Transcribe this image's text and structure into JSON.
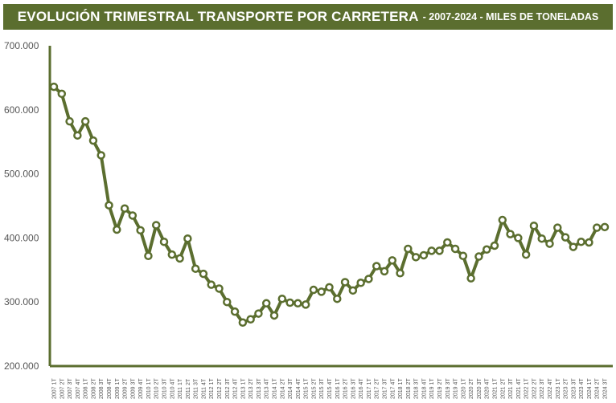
{
  "title": {
    "main": "EVOLUCIÓN TRIMESTRAL TRANSPORTE POR CARRETERA",
    "sub": "- 2007-2024 - MILES DE TONELADAS"
  },
  "colors": {
    "title_bg": "#5b6e2f",
    "line": "#5b6e2f",
    "marker_fill": "#ffffff"
  },
  "chart_data": {
    "type": "line",
    "title": "EVOLUCIÓN TRIMESTRAL TRANSPORTE POR CARRETERA - 2007-2024 - MILES DE TONELADAS",
    "xlabel": "",
    "ylabel": "",
    "ylim": [
      200000,
      700000
    ],
    "yticks": [
      200000,
      300000,
      400000,
      500000,
      600000,
      700000
    ],
    "ytick_labels": [
      "200.000",
      "300.000",
      "400.000",
      "500.000",
      "600.000",
      "700.000"
    ],
    "grid": false,
    "legend": "none",
    "categories": [
      "2007 1T",
      "2007 2T",
      "2007 3T",
      "2007 4T",
      "2008 1T",
      "2008 2T",
      "2008 3T",
      "2008 4T",
      "2009 1T",
      "2009 2T",
      "2009 3T",
      "2009 4T",
      "2010 1T",
      "2010 2T",
      "2010 3T",
      "2010 4T",
      "2011 1T",
      "2011 2T",
      "2011 3T",
      "2011 4T",
      "2012 1T",
      "2012 2T",
      "2012 3T",
      "2012 4T",
      "2013 1T",
      "2013 2T",
      "2013 3T",
      "2013 4T",
      "2014 1T",
      "2014 2T",
      "2014 3T",
      "2014 4T",
      "2015 1T",
      "2015 2T",
      "2015 3T",
      "2015 4T",
      "2016 1T",
      "2016 2T",
      "2016 3T",
      "2016 4T",
      "2017 1T",
      "2017 2T",
      "2017 3T",
      "2017 4T",
      "2018 1T",
      "2018 2T",
      "2018 3T",
      "2018 4T",
      "2019 1T",
      "2019 2T",
      "2019 3T",
      "2019 4T",
      "2020 1T",
      "2020 2T",
      "2020 3T",
      "2020 4T",
      "2021 1T",
      "2021 2T",
      "2021 3T",
      "2021 4T",
      "2022 1T",
      "2022 2T",
      "2022 3T",
      "2022 4T",
      "2023 1T",
      "2023 2T",
      "2023 3T",
      "2023 4T",
      "2024 1T",
      "2024 2T",
      "2024 3T"
    ],
    "series": [
      {
        "values": [
          636000,
          625000,
          582000,
          560000,
          582000,
          552000,
          529000,
          451000,
          413000,
          446000,
          435000,
          412000,
          372000,
          420000,
          394000,
          374000,
          368000,
          399000,
          352000,
          344000,
          327000,
          321000,
          300000,
          285000,
          268000,
          273000,
          282000,
          298000,
          279000,
          305000,
          299000,
          298000,
          296000,
          319000,
          316000,
          323000,
          305000,
          331000,
          318000,
          330000,
          336000,
          356000,
          348000,
          365000,
          345000,
          383000,
          370000,
          373000,
          380000,
          380000,
          393000,
          383000,
          372000,
          337000,
          371000,
          382000,
          388000,
          428000,
          406000,
          400000,
          374000,
          419000,
          399000,
          391000,
          416000,
          401000,
          386000,
          394000,
          393000,
          416000,
          417000
        ]
      }
    ]
  }
}
